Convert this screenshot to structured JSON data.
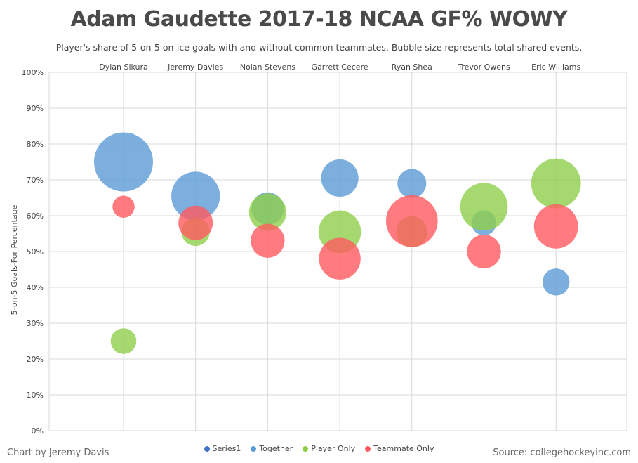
{
  "title": "Adam Gaudette 2017-18 NCAA GF% WOWY",
  "subtitle": "Player's share of 5-on-5 on-ice goals with and without common teammates. Bubble size represents total shared events.",
  "credit": "Chart by Jeremy Davis",
  "source": "Source: collegehockeyinc.com",
  "colors": {
    "Series1": "#4472c4",
    "Together": "#5b9bd5",
    "Player Only": "#8fce4a",
    "Teammate Only": "#ff5a5f",
    "grid": "#d9d9d9"
  },
  "chart_data": {
    "type": "bubble",
    "title": "Adam Gaudette 2017-18 NCAA GF% WOWY",
    "ylabel": "5-on-5 Goals-For Percentage",
    "ylim": [
      0,
      100
    ],
    "yticks": [
      "0%",
      "10%",
      "20%",
      "30%",
      "40%",
      "50%",
      "60%",
      "70%",
      "80%",
      "90%",
      "100%"
    ],
    "categories": [
      "Dylan Sikura",
      "Jeremy Davies",
      "Nolan Stevens",
      "Garrett Cecere",
      "Ryan Shea",
      "Trevor Owens",
      "Eric Williams"
    ],
    "legend": [
      "Series1",
      "Together",
      "Player Only",
      "Teammate Only"
    ],
    "legend_position": "bottom",
    "series": [
      {
        "name": "Together",
        "values": [
          75,
          65.5,
          62,
          70.5,
          69,
          58,
          41.5
        ],
        "sizes": [
          100,
          68,
          30,
          40,
          24,
          18,
          21
        ]
      },
      {
        "name": "Player Only",
        "values": [
          25,
          55.5,
          61,
          55.5,
          55.5,
          62.5,
          69
        ],
        "sizes": [
          19,
          23,
          40,
          52,
          28,
          65,
          71
        ]
      },
      {
        "name": "Teammate Only",
        "values": [
          62.5,
          58,
          53,
          48,
          58.5,
          50,
          57
        ],
        "sizes": [
          14,
          34,
          33,
          50,
          77,
          33,
          56
        ]
      }
    ]
  }
}
